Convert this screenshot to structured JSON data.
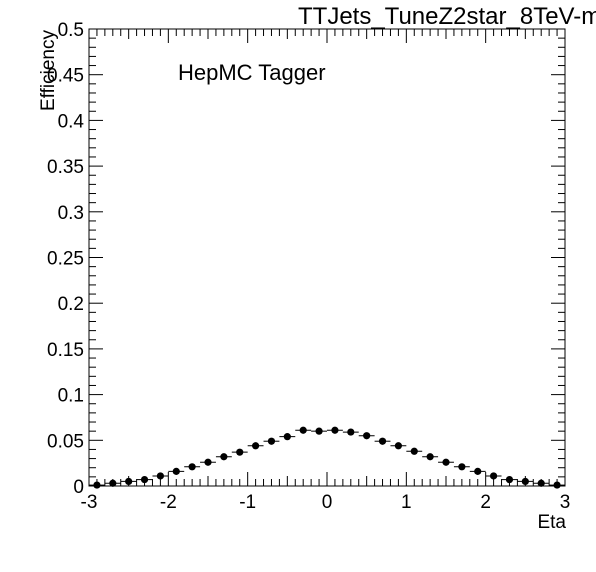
{
  "chart_data": {
    "type": "scatter",
    "title": "TTJets_TuneZ2star_8TeV-m",
    "annotation": "HepMC Tagger",
    "xlabel": "Eta",
    "ylabel": "Efficiency",
    "xlim": [
      -3,
      3
    ],
    "ylim": [
      0,
      0.5
    ],
    "x_major_ticks": [
      -3,
      -2,
      -1,
      0,
      1,
      2,
      3
    ],
    "x_tick_labels": [
      "-3",
      "-2",
      "-1",
      "0",
      "1",
      "2",
      "3"
    ],
    "y_major_ticks": [
      0,
      0.05,
      0.1,
      0.15,
      0.2,
      0.25,
      0.3,
      0.35,
      0.4,
      0.45,
      0.5
    ],
    "y_tick_labels": [
      "0",
      "0.05",
      "0.1",
      "0.15",
      "0.2",
      "0.25",
      "0.3",
      "0.35",
      "0.4",
      "0.45",
      "0.5"
    ],
    "grid": false,
    "bin_width": 0.2,
    "series": [
      {
        "x": [
          -2.9,
          -2.7,
          -2.5,
          -2.3,
          -2.1,
          -1.9,
          -1.7,
          -1.5,
          -1.3,
          -1.1,
          -0.9,
          -0.7,
          -0.5,
          -0.3,
          -0.1,
          0.1,
          0.3,
          0.5,
          0.7,
          0.9,
          1.1,
          1.3,
          1.5,
          1.7,
          1.9,
          2.1,
          2.3,
          2.5,
          2.7,
          2.9
        ],
        "y": [
          0.001,
          0.003,
          0.005,
          0.007,
          0.011,
          0.016,
          0.021,
          0.026,
          0.032,
          0.037,
          0.044,
          0.049,
          0.054,
          0.061,
          0.06,
          0.061,
          0.059,
          0.055,
          0.049,
          0.044,
          0.038,
          0.032,
          0.026,
          0.021,
          0.016,
          0.011,
          0.007,
          0.005,
          0.003,
          0.001
        ]
      }
    ]
  }
}
